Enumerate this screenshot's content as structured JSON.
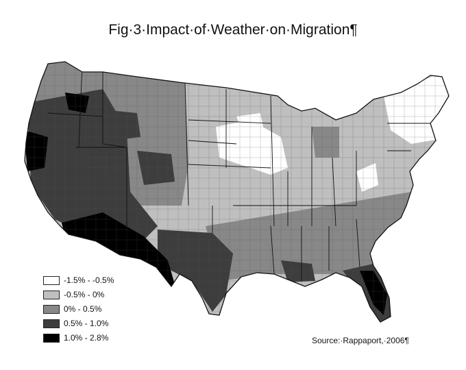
{
  "figure": {
    "title": "Fig·3·Impact·of·Weather·on·Migration¶",
    "source": "Source:·Rappaport,·2006¶"
  },
  "legend": {
    "items": [
      {
        "label": "-1.5% - -0.5%",
        "color": "#ffffff"
      },
      {
        "label": "-0.5% - 0%",
        "color": "#bfbfbf"
      },
      {
        "label": "0% - 0.5%",
        "color": "#888888"
      },
      {
        "label": "0.5% - 1.0%",
        "color": "#3d3d3d"
      },
      {
        "label": "1.0% - 2.8%",
        "color": "#000000"
      }
    ]
  }
}
